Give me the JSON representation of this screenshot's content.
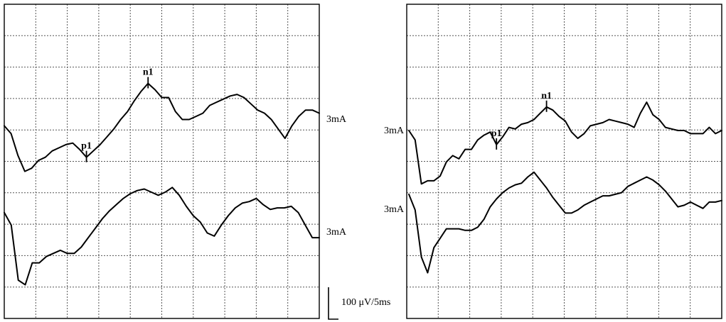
{
  "chart_data": [
    {
      "type": "line",
      "panel": "left",
      "title": "",
      "grid": true,
      "grid_divisions": {
        "x": 10,
        "y": 10
      },
      "series": [
        {
          "label": "3mA",
          "peaks": [
            {
              "name": "p1",
              "index": 12
            },
            {
              "name": "n1",
              "index": 21
            }
          ],
          "values": [
            0.15,
            -0.1,
            -0.8,
            -1.3,
            -1.2,
            -0.95,
            -0.85,
            -0.65,
            -0.55,
            -0.45,
            -0.4,
            -0.6,
            -0.85,
            -0.65,
            -0.45,
            -0.2,
            0.05,
            0.35,
            0.6,
            0.95,
            1.25,
            1.5,
            1.3,
            1.05,
            1.05,
            0.6,
            0.35,
            0.35,
            0.45,
            0.55,
            0.8,
            0.9,
            1.0,
            1.1,
            1.15,
            1.05,
            0.85,
            0.65,
            0.55,
            0.35,
            0.05,
            -0.25,
            0.15,
            0.45,
            0.65,
            0.65,
            0.55
          ]
        },
        {
          "label": "3mA",
          "peaks": [],
          "values": [
            0.3,
            -0.1,
            -1.85,
            -2.0,
            -1.3,
            -1.3,
            -1.1,
            -1.0,
            -0.9,
            -1.0,
            -1.0,
            -0.8,
            -0.5,
            -0.2,
            0.1,
            0.35,
            0.55,
            0.75,
            0.9,
            1.0,
            1.05,
            0.95,
            0.85,
            0.95,
            1.1,
            0.85,
            0.5,
            0.2,
            0.0,
            -0.35,
            -0.45,
            -0.1,
            0.2,
            0.45,
            0.6,
            0.65,
            0.75,
            0.55,
            0.4,
            0.45,
            0.45,
            0.5,
            0.3,
            -0.1,
            -0.5,
            -0.5
          ]
        }
      ]
    },
    {
      "type": "line",
      "panel": "right",
      "title": "",
      "grid": true,
      "grid_divisions": {
        "x": 10,
        "y": 10
      },
      "series": [
        {
          "label": "3mA",
          "peaks": [
            {
              "name": "p1",
              "index": 14
            },
            {
              "name": "n1",
              "index": 22
            }
          ],
          "values": [
            0.0,
            -0.3,
            -1.7,
            -1.6,
            -1.6,
            -1.45,
            -1.0,
            -0.8,
            -0.9,
            -0.6,
            -0.6,
            -0.3,
            -0.15,
            -0.05,
            -0.45,
            -0.2,
            0.1,
            0.05,
            0.2,
            0.25,
            0.35,
            0.55,
            0.75,
            0.65,
            0.45,
            0.3,
            -0.05,
            -0.25,
            -0.1,
            0.15,
            0.2,
            0.25,
            0.35,
            0.3,
            0.25,
            0.2,
            0.1,
            0.55,
            0.9,
            0.5,
            0.35,
            0.1,
            0.05,
            0.0,
            0.0,
            -0.1,
            -0.1,
            -0.1,
            0.1,
            -0.1,
            0.0
          ]
        },
        {
          "label": "3mA",
          "peaks": [],
          "values": [
            0.5,
            0.0,
            -1.5,
            -2.0,
            -1.2,
            -0.9,
            -0.6,
            -0.6,
            -0.6,
            -0.65,
            -0.65,
            -0.55,
            -0.3,
            0.1,
            0.35,
            0.55,
            0.7,
            0.8,
            0.85,
            1.05,
            1.2,
            0.95,
            0.7,
            0.4,
            0.15,
            -0.1,
            -0.1,
            0.0,
            0.15,
            0.25,
            0.35,
            0.45,
            0.45,
            0.5,
            0.55,
            0.75,
            0.85,
            0.95,
            1.05,
            0.95,
            0.8,
            0.6,
            0.35,
            0.1,
            0.15,
            0.25,
            0.15,
            0.05,
            0.25,
            0.25,
            0.3
          ]
        }
      ]
    }
  ],
  "scale_bar": {
    "label": "100 μV/5ms"
  }
}
